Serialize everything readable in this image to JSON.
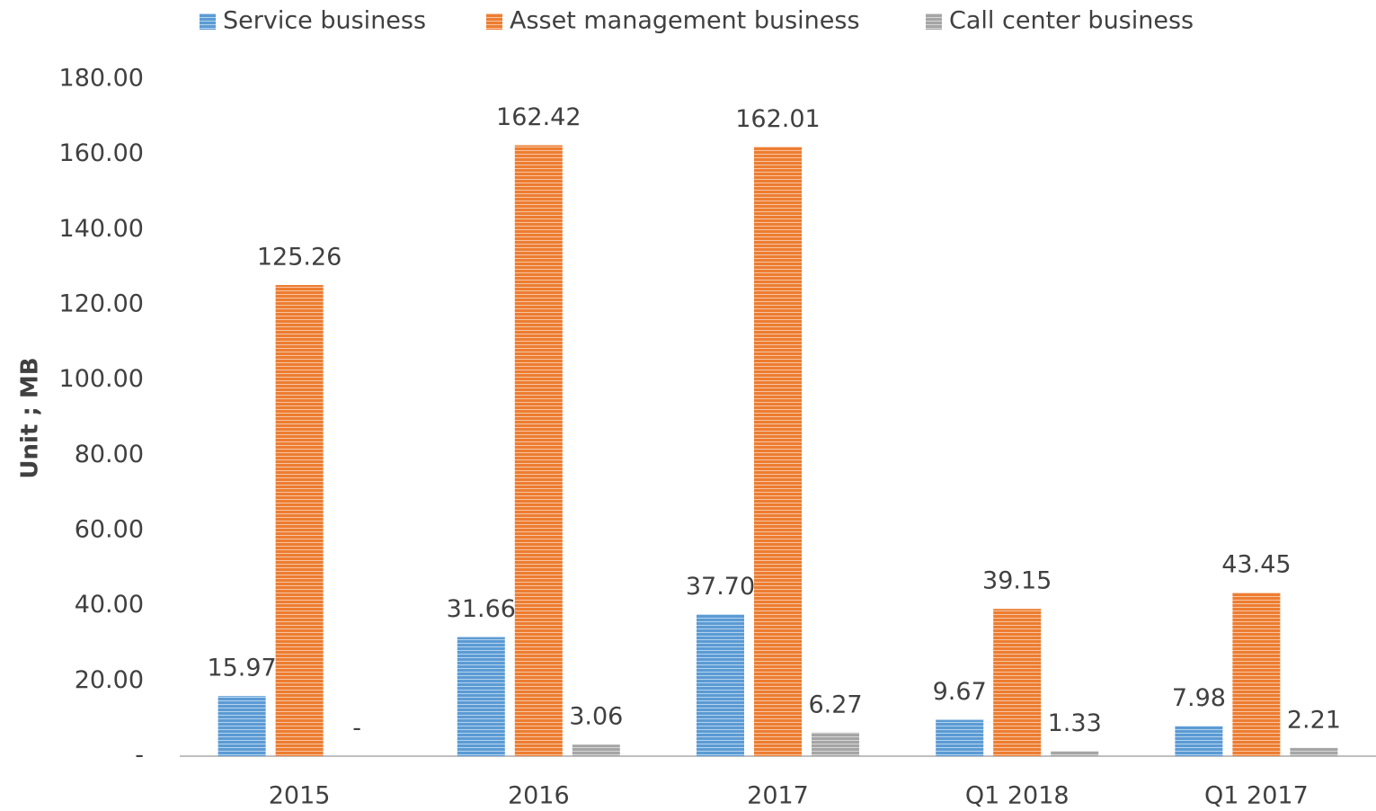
{
  "chart_data": {
    "type": "bar",
    "y_label": "Unit ; MB",
    "categories": [
      "2015",
      "2016",
      "2017",
      "Q1 2018",
      "Q1 2017"
    ],
    "series": [
      {
        "name": "Service business",
        "color": "#5b9bd5",
        "values": [
          15.97,
          31.66,
          37.7,
          9.67,
          7.98
        ],
        "value_labels": [
          "15.97",
          "31.66",
          "37.70",
          "9.67",
          "7.98"
        ]
      },
      {
        "name": "Asset management business",
        "color": "#ed7d31",
        "values": [
          125.26,
          162.42,
          162.01,
          39.15,
          43.45
        ],
        "value_labels": [
          "125.26",
          "162.42",
          "162.01",
          "39.15",
          "43.45"
        ]
      },
      {
        "name": "Call center business",
        "color": "#a5a5a5",
        "values": [
          0,
          3.06,
          6.27,
          1.33,
          2.21
        ],
        "value_labels": [
          "-",
          "3.06",
          "6.27",
          "1.33",
          "2.21"
        ]
      }
    ],
    "ylim": [
      0,
      180
    ],
    "yticks": [
      {
        "value": 0,
        "label": "-"
      },
      {
        "value": 20,
        "label": "20.00"
      },
      {
        "value": 40,
        "label": "40.00"
      },
      {
        "value": 60,
        "label": "60.00"
      },
      {
        "value": 80,
        "label": "80.00"
      },
      {
        "value": 100,
        "label": "100.00"
      },
      {
        "value": 120,
        "label": "120.00"
      },
      {
        "value": 140,
        "label": "140.00"
      },
      {
        "value": 160,
        "label": "160.00"
      },
      {
        "value": 180,
        "label": "180.00"
      }
    ],
    "grid": false,
    "legend": "top"
  }
}
